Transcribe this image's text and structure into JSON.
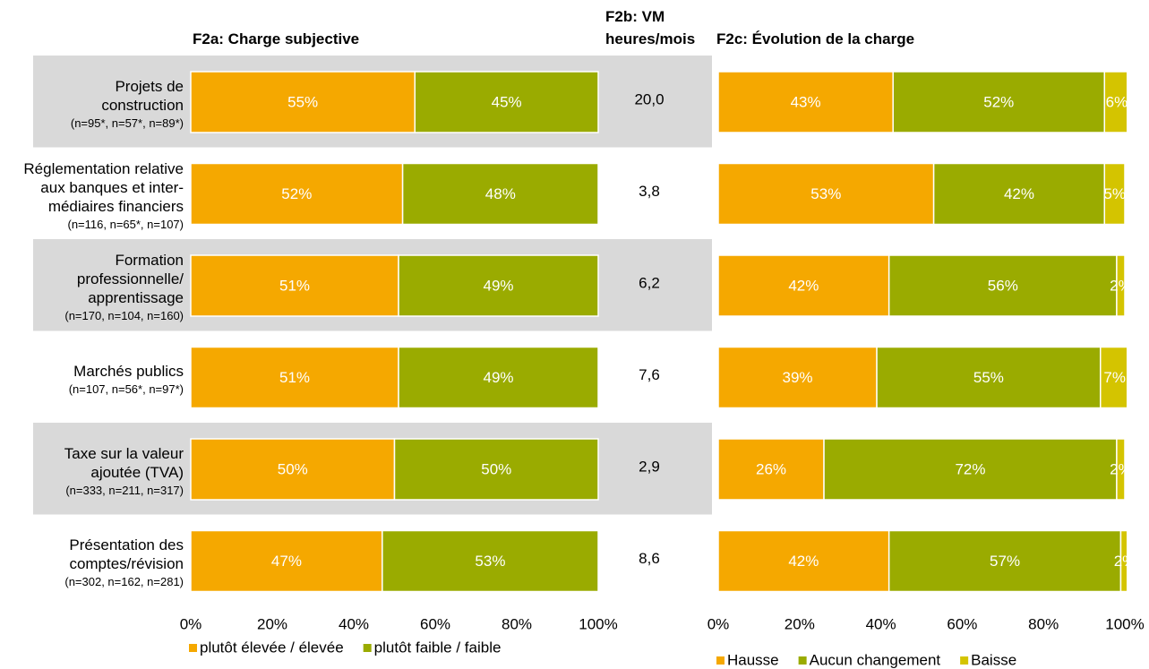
{
  "chart_data": [
    {
      "type": "bar",
      "orientation": "horizontal",
      "stacked": true,
      "title": "F2a: Charge subjective",
      "categories": [
        "Projets de\nconstruction",
        "Réglementation relative\naux banques et inter-\nmédiaires financiers",
        "Formation\nprofessionnelle/\napprentissage",
        "Marchés publics",
        "Taxe sur la valeur\najoutée (TVA)",
        "Présentation des\ncomptes/révision"
      ],
      "sample_sizes": [
        "(n=95*, n=57*, n=89*)",
        "(n=116, n=65*, n=107)",
        "(n=170, n=104, n=160)",
        "(n=107, n=56*, n=97*)",
        "(n=333, n=211, n=317)",
        "(n=302, n=162, n=281)"
      ],
      "series": [
        {
          "name": "plutôt élevée / élevée",
          "color": "#f5a800",
          "values": [
            55,
            52,
            51,
            51,
            50,
            47
          ],
          "value_labels": [
            "55%",
            "52%",
            "51%",
            "51%",
            "50%",
            "47%"
          ]
        },
        {
          "name": "plutôt faible / faible",
          "color": "#9aab00",
          "values": [
            45,
            48,
            49,
            49,
            50,
            53
          ],
          "value_labels": [
            "45%",
            "48%",
            "49%",
            "49%",
            "50%",
            "53%"
          ]
        }
      ],
      "xlim": [
        0,
        100
      ],
      "xticks": [
        {
          "value": 0,
          "label": "0%"
        },
        {
          "value": 20,
          "label": "20%"
        },
        {
          "value": 40,
          "label": "40%"
        },
        {
          "value": 60,
          "label": "60%"
        },
        {
          "value": 80,
          "label": "80%"
        },
        {
          "value": 100,
          "label": "100%"
        }
      ],
      "legend": "bottom"
    },
    {
      "type": "table",
      "title": "F2b: VM\nheures/mois",
      "values": [
        20.0,
        3.8,
        6.2,
        7.6,
        2.9,
        8.6
      ],
      "value_labels": [
        "20,0",
        "3,8",
        "6,2",
        "7,6",
        "2,9",
        "8,6"
      ]
    },
    {
      "type": "bar",
      "orientation": "horizontal",
      "stacked": true,
      "title": "F2c: Évolution de la charge",
      "series": [
        {
          "name": "Hausse",
          "color": "#f5a800",
          "values": [
            43,
            53,
            42,
            39,
            26,
            42
          ],
          "value_labels": [
            "43%",
            "53%",
            "42%",
            "39%",
            "26%",
            "42%"
          ]
        },
        {
          "name": "Aucun changement",
          "color": "#9aab00",
          "values": [
            52,
            42,
            56,
            55,
            72,
            57
          ],
          "value_labels": [
            "52%",
            "42%",
            "56%",
            "55%",
            "72%",
            "57%"
          ]
        },
        {
          "name": "Baisse",
          "color": "#d4c400",
          "values": [
            6,
            5,
            2,
            7,
            2,
            2
          ],
          "value_labels": [
            "6%",
            "5%",
            "2%",
            "7%",
            "2%",
            "2%"
          ]
        }
      ],
      "xlim": [
        0,
        100
      ],
      "xticks": [
        {
          "value": 0,
          "label": "0%"
        },
        {
          "value": 20,
          "label": "20%"
        },
        {
          "value": 40,
          "label": "40%"
        },
        {
          "value": 60,
          "label": "60%"
        },
        {
          "value": 80,
          "label": "80%"
        },
        {
          "value": 100,
          "label": "100%"
        }
      ],
      "legend": "bottom"
    }
  ]
}
